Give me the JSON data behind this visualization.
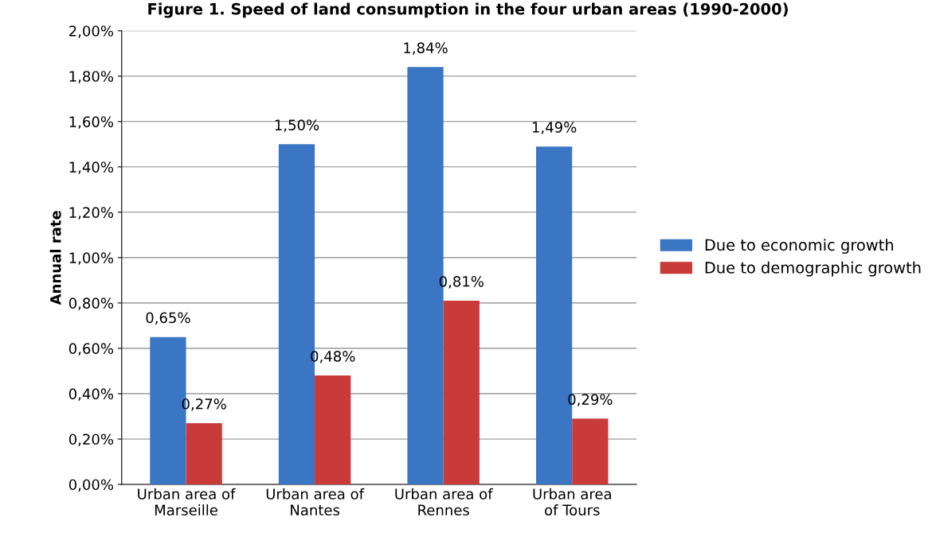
{
  "chart_data": {
    "type": "bar",
    "title": "Figure 1. Speed of land consumption in the four urban areas (1990-2000)",
    "ylabel": "Annual rate",
    "categories": [
      "Urban area of\nMarseille",
      "Urban area of\nNantes",
      "Urban area of\nRennes",
      "Urban area\nof Tours"
    ],
    "series": [
      {
        "name": "Due to economic growth",
        "color": "#3a76c4",
        "values": [
          0.65,
          1.5,
          1.84,
          1.49
        ],
        "value_labels": [
          "0,65%",
          "1,50%",
          "1,84%",
          "1,49%"
        ]
      },
      {
        "name": "Due to demographic growth",
        "color": "#c83b38",
        "values": [
          0.27,
          0.48,
          0.81,
          0.29
        ],
        "value_labels": [
          "0,27%",
          "0,48%",
          "0,81%",
          "0,29%"
        ]
      }
    ],
    "ylim": [
      0,
      2
    ],
    "yticks": [
      {
        "value": 0,
        "label": "0,00%"
      },
      {
        "value": 0.2,
        "label": "0,20%"
      },
      {
        "value": 0.4,
        "label": "0,40%"
      },
      {
        "value": 0.6,
        "label": "0,60%"
      },
      {
        "value": 0.8,
        "label": "0,80%"
      },
      {
        "value": 1.0,
        "label": "1,00%"
      },
      {
        "value": 1.2,
        "label": "1,20%"
      },
      {
        "value": 1.4,
        "label": "1,40%"
      },
      {
        "value": 1.6,
        "label": "1,60%"
      },
      {
        "value": 1.8,
        "label": "1,80%"
      },
      {
        "value": 2.0,
        "label": "2,00%"
      }
    ],
    "grid": "y",
    "legend": "right"
  }
}
